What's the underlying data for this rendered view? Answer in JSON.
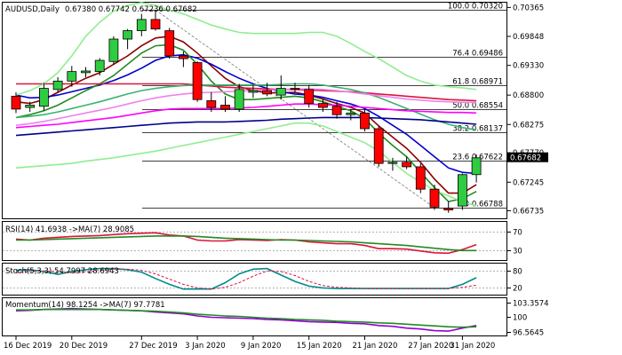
{
  "chart_data": [
    {
      "type": "candlestick",
      "panel": "price",
      "symbol_label": "AUDUSD,Daily",
      "ohlc_label": "0.67380 0.67742 0.67236 0.67682",
      "y_ticks": [
        0.70365,
        0.69848,
        0.6933,
        0.688,
        0.68275,
        0.6777,
        0.67245,
        0.66735
      ],
      "y_tick_labels": [
        "0.70365",
        "0.69848",
        "0.69330",
        "0.68800",
        "0.68275",
        "0.67770",
        "0.67245",
        "0.66735"
      ],
      "ylim": [
        0.666,
        0.7045
      ],
      "current_price": 0.67682,
      "current_price_label": "0.67682",
      "candles": [
        {
          "o": 0.6878,
          "h": 0.6885,
          "l": 0.6848,
          "c": 0.6855
        },
        {
          "o": 0.6858,
          "h": 0.6868,
          "l": 0.685,
          "c": 0.6862
        },
        {
          "o": 0.686,
          "h": 0.6902,
          "l": 0.6852,
          "c": 0.6892
        },
        {
          "o": 0.689,
          "h": 0.6912,
          "l": 0.6885,
          "c": 0.6905
        },
        {
          "o": 0.6905,
          "h": 0.6932,
          "l": 0.6895,
          "c": 0.6922
        },
        {
          "o": 0.692,
          "h": 0.693,
          "l": 0.6912,
          "c": 0.6923
        },
        {
          "o": 0.6922,
          "h": 0.6946,
          "l": 0.6915,
          "c": 0.6942
        },
        {
          "o": 0.694,
          "h": 0.6985,
          "l": 0.6935,
          "c": 0.698
        },
        {
          "o": 0.698,
          "h": 0.6998,
          "l": 0.6962,
          "c": 0.6995
        },
        {
          "o": 0.6995,
          "h": 0.7025,
          "l": 0.6985,
          "c": 0.7015
        },
        {
          "o": 0.7015,
          "h": 0.7032,
          "l": 0.6995,
          "c": 0.6998
        },
        {
          "o": 0.6995,
          "h": 0.7,
          "l": 0.6945,
          "c": 0.695
        },
        {
          "o": 0.695,
          "h": 0.6958,
          "l": 0.693,
          "c": 0.6945
        },
        {
          "o": 0.6938,
          "h": 0.694,
          "l": 0.6868,
          "c": 0.6872
        },
        {
          "o": 0.687,
          "h": 0.6885,
          "l": 0.685,
          "c": 0.6858
        },
        {
          "o": 0.6862,
          "h": 0.6878,
          "l": 0.685,
          "c": 0.6855
        },
        {
          "o": 0.6855,
          "h": 0.69,
          "l": 0.685,
          "c": 0.689
        },
        {
          "o": 0.6885,
          "h": 0.6898,
          "l": 0.6875,
          "c": 0.6888
        },
        {
          "o": 0.6888,
          "h": 0.6902,
          "l": 0.6878,
          "c": 0.6882
        },
        {
          "o": 0.688,
          "h": 0.6915,
          "l": 0.6872,
          "c": 0.6892
        },
        {
          "o": 0.6892,
          "h": 0.6902,
          "l": 0.6885,
          "c": 0.689
        },
        {
          "o": 0.689,
          "h": 0.6898,
          "l": 0.6858,
          "c": 0.6865
        },
        {
          "o": 0.6865,
          "h": 0.6872,
          "l": 0.685,
          "c": 0.6858
        },
        {
          "o": 0.686,
          "h": 0.6868,
          "l": 0.6838,
          "c": 0.6845
        },
        {
          "o": 0.6845,
          "h": 0.6855,
          "l": 0.6835,
          "c": 0.6848
        },
        {
          "o": 0.6848,
          "h": 0.6855,
          "l": 0.6815,
          "c": 0.682
        },
        {
          "o": 0.682,
          "h": 0.6825,
          "l": 0.6752,
          "c": 0.6758
        },
        {
          "o": 0.6758,
          "h": 0.6768,
          "l": 0.6745,
          "c": 0.676
        },
        {
          "o": 0.676,
          "h": 0.677,
          "l": 0.6748,
          "c": 0.6752
        },
        {
          "o": 0.6752,
          "h": 0.6758,
          "l": 0.6705,
          "c": 0.6712
        },
        {
          "o": 0.6712,
          "h": 0.672,
          "l": 0.6675,
          "c": 0.668
        },
        {
          "o": 0.6678,
          "h": 0.669,
          "l": 0.667,
          "c": 0.6675
        },
        {
          "o": 0.6682,
          "h": 0.674,
          "l": 0.6675,
          "c": 0.6738
        },
        {
          "o": 0.6738,
          "h": 0.6774,
          "l": 0.6724,
          "c": 0.6768
        }
      ],
      "moving_averages": [
        {
          "color": "#8b0000",
          "values": [
            0.6868,
            0.6865,
            0.6872,
            0.6885,
            0.6898,
            0.691,
            0.692,
            0.6935,
            0.695,
            0.6968,
            0.6982,
            0.6985,
            0.6975,
            0.6955,
            0.6932,
            0.691,
            0.6895,
            0.6888,
            0.6884,
            0.6884,
            0.6885,
            0.688,
            0.6873,
            0.6865,
            0.6858,
            0.6848,
            0.6825,
            0.6805,
            0.6785,
            0.676,
            0.673,
            0.6705,
            0.6705,
            0.672
          ]
        },
        {
          "color": "#0000cd",
          "values": [
            0.688,
            0.6875,
            0.6876,
            0.688,
            0.6886,
            0.6892,
            0.6898,
            0.6906,
            0.6916,
            0.6928,
            0.6942,
            0.695,
            0.6952,
            0.6946,
            0.6935,
            0.6922,
            0.691,
            0.69,
            0.6892,
            0.6886,
            0.6882,
            0.688,
            0.6876,
            0.687,
            0.6864,
            0.6856,
            0.6842,
            0.6826,
            0.681,
            0.679,
            0.677,
            0.675,
            0.6742,
            0.674
          ]
        },
        {
          "color": "#228b22",
          "values": [
            0.684,
            0.6845,
            0.6852,
            0.6862,
            0.6875,
            0.6888,
            0.69,
            0.6915,
            0.6935,
            0.6955,
            0.6968,
            0.697,
            0.696,
            0.6935,
            0.6905,
            0.6882,
            0.6872,
            0.6872,
            0.6874,
            0.6876,
            0.6878,
            0.6875,
            0.6868,
            0.686,
            0.6852,
            0.6838,
            0.6812,
            0.679,
            0.677,
            0.6742,
            0.6715,
            0.669,
            0.6695,
            0.6708
          ]
        },
        {
          "color": "#dc143c",
          "values": [
            0.69,
            0.69,
            0.69,
            0.69,
            0.69,
            0.69,
            0.69,
            0.69,
            0.69,
            0.69,
            0.69,
            0.69,
            0.69,
            0.6898,
            0.6896,
            0.6894,
            0.6893,
            0.6892,
            0.6891,
            0.689,
            0.689,
            0.6889,
            0.6888,
            0.6887,
            0.6886,
            0.6884,
            0.6882,
            0.688,
            0.6878,
            0.6876,
            0.6874,
            0.6872,
            0.6871,
            0.687
          ]
        },
        {
          "color": "#3cb371",
          "values": [
            0.684,
            0.6842,
            0.6845,
            0.685,
            0.6856,
            0.6862,
            0.6868,
            0.6875,
            0.6882,
            0.6888,
            0.6892,
            0.6895,
            0.6897,
            0.6898,
            0.6898,
            0.6898,
            0.6898,
            0.6898,
            0.6898,
            0.6899,
            0.69,
            0.69,
            0.6898,
            0.6894,
            0.689,
            0.6884,
            0.6876,
            0.6866,
            0.6856,
            0.6846,
            0.6836,
            0.6828,
            0.6822,
            0.6818
          ]
        },
        {
          "color": "#ff00ff",
          "values": [
            0.6822,
            0.6824,
            0.6826,
            0.6828,
            0.6831,
            0.6834,
            0.6837,
            0.684,
            0.6844,
            0.6848,
            0.6852,
            0.6855,
            0.6856,
            0.6856,
            0.6856,
            0.6856,
            0.6857,
            0.6858,
            0.686,
            0.6862,
            0.6864,
            0.6864,
            0.6863,
            0.6862,
            0.686,
            0.6858,
            0.6856,
            0.6854,
            0.6852,
            0.6851,
            0.685,
            0.6849,
            0.6849,
            0.6848
          ]
        },
        {
          "color": "#ee82ee",
          "values": [
            0.6826,
            0.6829,
            0.6833,
            0.6838,
            0.6843,
            0.6848,
            0.6853,
            0.6858,
            0.6864,
            0.687,
            0.6875,
            0.6879,
            0.6882,
            0.6884,
            0.6885,
            0.6886,
            0.6887,
            0.6888,
            0.6889,
            0.689,
            0.6891,
            0.6891,
            0.689,
            0.6888,
            0.6885,
            0.6882,
            0.6879,
            0.6876,
            0.6873,
            0.6871,
            0.6869,
            0.6868,
            0.6867,
            0.6867
          ]
        },
        {
          "color": "#00008b",
          "values": [
            0.6808,
            0.681,
            0.6812,
            0.6814,
            0.6816,
            0.6818,
            0.682,
            0.6822,
            0.6824,
            0.6826,
            0.6828,
            0.683,
            0.6831,
            0.6832,
            0.6832,
            0.6832,
            0.6833,
            0.6834,
            0.6835,
            0.6837,
            0.6838,
            0.6839,
            0.684,
            0.684,
            0.684,
            0.684,
            0.6839,
            0.6838,
            0.6837,
            0.6836,
            0.6834,
            0.6832,
            0.683,
            0.6828
          ]
        },
        {
          "color": "#90ee90",
          "values": [
            0.675,
            0.6752,
            0.6754,
            0.6756,
            0.6758,
            0.6762,
            0.6765,
            0.6768,
            0.6772,
            0.6776,
            0.678,
            0.6785,
            0.679,
            0.6795,
            0.68,
            0.6805,
            0.681,
            0.6815,
            0.682,
            0.6825,
            0.683,
            0.683,
            0.6825,
            0.6815,
            0.6805,
            0.6795,
            0.678,
            0.676,
            0.674,
            0.6725,
            0.671,
            0.67,
            0.669,
            0.6682
          ]
        },
        {
          "color": "#90ee90",
          "values": [
            0.688,
            0.6888,
            0.69,
            0.692,
            0.695,
            0.6985,
            0.701,
            0.703,
            0.704,
            0.7045,
            0.704,
            0.7032,
            0.7025,
            0.7015,
            0.7005,
            0.6998,
            0.6992,
            0.699,
            0.699,
            0.699,
            0.699,
            0.6992,
            0.6992,
            0.6985,
            0.6972,
            0.6958,
            0.6945,
            0.693,
            0.6915,
            0.6905,
            0.6898,
            0.6895,
            0.6893,
            0.689
          ]
        }
      ],
      "fib_levels": [
        {
          "label": "100.0 0.70320",
          "value": 0.7032
        },
        {
          "label": "76.4 0.69486",
          "value": 0.69486
        },
        {
          "label": "61.8 0.68971",
          "value": 0.68971
        },
        {
          "label": "50.0 0.68554",
          "value": 0.68554
        },
        {
          "label": "38.2 0.68137",
          "value": 0.68137
        },
        {
          "label": "23.6 0.67622",
          "value": 0.67622
        },
        {
          "label": "0.0 0.66788",
          "value": 0.66788
        }
      ]
    },
    {
      "type": "line",
      "panel": "rsi",
      "label": "RSI(14) 41.6938 ->MA(7) 28.9085",
      "y_ticks": [
        70,
        30
      ],
      "y_tick_labels": [
        "70",
        "30"
      ],
      "ylim": [
        10,
        90
      ],
      "series": [
        {
          "color": "#dc143c",
          "values": [
            54,
            52,
            56,
            58,
            60,
            61,
            62,
            64,
            66,
            67,
            68,
            63,
            61,
            52,
            50,
            50,
            53,
            52,
            51,
            53,
            52,
            48,
            46,
            44,
            44,
            40,
            33,
            33,
            32,
            28,
            24,
            23,
            31,
            42
          ]
        },
        {
          "color": "#228b22",
          "values": [
            52,
            52,
            53,
            54,
            55,
            56,
            57,
            58,
            59,
            60,
            61,
            61,
            61,
            60,
            58,
            56,
            55,
            54,
            53,
            52,
            52,
            51,
            50,
            49,
            48,
            46,
            44,
            42,
            40,
            37,
            34,
            31,
            29,
            29
          ]
        }
      ]
    },
    {
      "type": "line",
      "panel": "stoch",
      "label": "Stoch(5,3,3) 54.7997 28.6943",
      "y_ticks": [
        80,
        20
      ],
      "y_tick_labels": [
        "80",
        "20"
      ],
      "ylim": [
        0,
        100
      ],
      "series": [
        {
          "color": "#008b8b",
          "values": [
            80,
            82,
            76,
            66,
            76,
            82,
            86,
            86,
            82,
            74,
            52,
            32,
            16,
            16,
            16,
            38,
            68,
            84,
            86,
            64,
            42,
            26,
            20,
            18,
            18,
            18,
            18,
            18,
            18,
            18,
            18,
            18,
            32,
            55
          ]
        },
        {
          "color": "#dc143c",
          "dashed": true,
          "values": [
            72,
            76,
            78,
            75,
            72,
            74,
            80,
            84,
            84,
            80,
            68,
            50,
            32,
            20,
            16,
            22,
            38,
            60,
            78,
            76,
            62,
            42,
            28,
            22,
            20,
            18,
            18,
            18,
            18,
            18,
            18,
            18,
            22,
            29
          ]
        }
      ]
    },
    {
      "type": "line",
      "panel": "momentum",
      "label": "Momentum(14) 98.1254 ->MA(7) 97.7781",
      "y_ticks": [
        103.3574,
        100,
        96.5645
      ],
      "y_tick_labels": [
        "103.3574",
        "100",
        "96.5645"
      ],
      "ylim": [
        96.0,
        104.2
      ],
      "series": [
        {
          "color": "#9400d3",
          "values": [
            101.5,
            101.6,
            101.8,
            101.9,
            102.0,
            101.9,
            101.8,
            101.7,
            101.6,
            101.5,
            101.2,
            101.0,
            100.8,
            100.3,
            100.0,
            99.9,
            99.8,
            99.7,
            99.5,
            99.4,
            99.2,
            99.0,
            98.9,
            98.8,
            98.6,
            98.5,
            98.1,
            97.9,
            97.5,
            97.3,
            96.9,
            96.8,
            97.5,
            98.1
          ]
        },
        {
          "color": "#228b22",
          "values": [
            101.7,
            101.7,
            101.8,
            101.8,
            101.8,
            101.8,
            101.8,
            101.7,
            101.6,
            101.5,
            101.4,
            101.2,
            101.0,
            100.7,
            100.5,
            100.3,
            100.2,
            100.0,
            99.8,
            99.7,
            99.5,
            99.4,
            99.3,
            99.1,
            99.0,
            98.9,
            98.7,
            98.6,
            98.4,
            98.2,
            98.0,
            97.8,
            97.7,
            97.8
          ]
        }
      ]
    },
    {
      "type": "axis",
      "panel": "time",
      "x_tick_labels": [
        "16 Dec 2019",
        "20 Dec 2019",
        "27 Dec 2019",
        "3 Jan 2020",
        "9 Jan 2020",
        "15 Jan 2020",
        "21 Jan 2020",
        "27 Jan 2020",
        "31 Jan 2020"
      ],
      "x_tick_candle_index": [
        0,
        4,
        9,
        13,
        17,
        21,
        25,
        29,
        32
      ]
    }
  ]
}
